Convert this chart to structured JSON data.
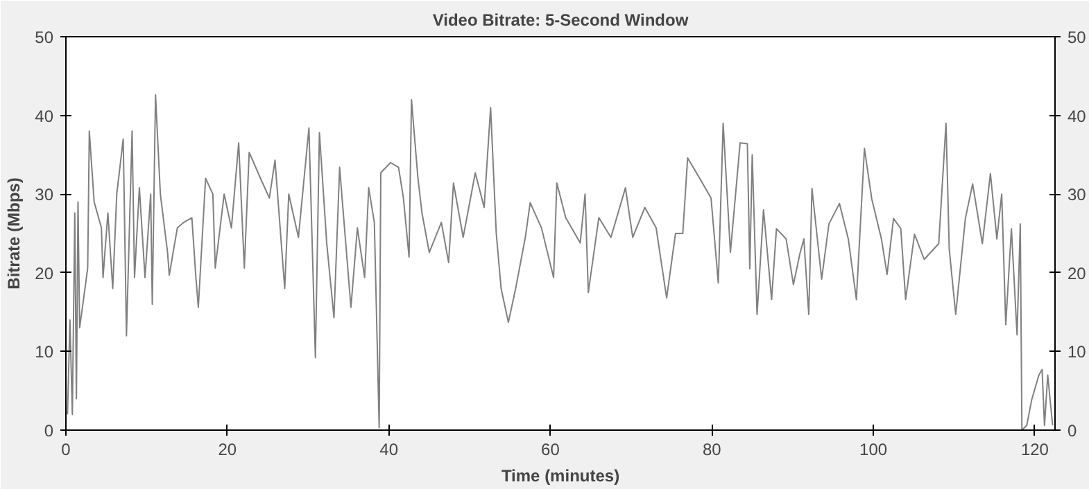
{
  "chart_data": {
    "type": "line",
    "title": "Video Bitrate: 5-Second Window",
    "xlabel": "Time (minutes)",
    "ylabel": "Bitrate (Mbps)",
    "xlim": [
      0,
      122.5
    ],
    "xticks": [
      0,
      20,
      40,
      60,
      80,
      100,
      120
    ],
    "ylim": [
      0,
      50
    ],
    "yticks": [
      0,
      10,
      20,
      30,
      40,
      50
    ],
    "y2lim": [
      0,
      50
    ],
    "y2ticks": [
      0,
      10,
      20,
      30,
      40,
      50
    ],
    "grid": false,
    "x": [
      0.2,
      0.5,
      0.8,
      1.1,
      1.3,
      1.5,
      1.7,
      2.3,
      2.7,
      2.9,
      3.5,
      4.4,
      4.6,
      5.2,
      5.8,
      6.3,
      7.1,
      7.5,
      8.2,
      8.5,
      9.1,
      9.8,
      10.5,
      10.7,
      11.1,
      11.7,
      12.6,
      12.8,
      13.8,
      14.6,
      15.6,
      16.1,
      16.4,
      17.3,
      18.2,
      18.5,
      19.6,
      20.5,
      21.4,
      22.1,
      22.7,
      24.1,
      25.2,
      25.9,
      27.1,
      27.6,
      28.8,
      30.1,
      30.9,
      31.4,
      32.3,
      33.2,
      33.9,
      35.3,
      36.1,
      37,
      37.5,
      38.2,
      38.8,
      39,
      40.2,
      41.2,
      41.8,
      42.5,
      42.8,
      43.6,
      44.1,
      45,
      46.5,
      47.4,
      48,
      49.2,
      50.7,
      51.8,
      52.6,
      53.3,
      53.9,
      54.8,
      55.7,
      56.9,
      57.5,
      58.9,
      60.4,
      60.8,
      61.9,
      63.7,
      64.3,
      64.7,
      66,
      67.5,
      69.3,
      70.2,
      71.7,
      73.1,
      74.4,
      75.5,
      76.4,
      77,
      78.5,
      79.9,
      80.8,
      81.4,
      82.3,
      83.5,
      84.4,
      84.7,
      85,
      85.6,
      86.4,
      87.4,
      88,
      89.2,
      90.1,
      90.9,
      91.4,
      92,
      92.4,
      93.6,
      94.5,
      95.8,
      96.9,
      97.9,
      98.9,
      99.8,
      101,
      101.7,
      102.5,
      103.4,
      104,
      105.1,
      106.3,
      108.1,
      109,
      109.4,
      110.2,
      111.4,
      112.3,
      113.5,
      114.5,
      115.3,
      115.9,
      116.4,
      117.1,
      117.8,
      118.2,
      118.4,
      119,
      119.6,
      120.5,
      120.9,
      121.2,
      121.6,
      122.2
    ],
    "series": [
      {
        "color": "#808080",
        "values": [
          2,
          14,
          2,
          27.6,
          4,
          29,
          13,
          17.5,
          20.6,
          38,
          29,
          25.7,
          19.4,
          27.6,
          18,
          30,
          37,
          12,
          38,
          19.4,
          30.8,
          19.4,
          30,
          16,
          42.6,
          30,
          22.5,
          19.7,
          25.7,
          26.4,
          27,
          19.4,
          15.6,
          32,
          30,
          20.6,
          30,
          25.7,
          36.5,
          20.6,
          35.3,
          32,
          29.5,
          34.3,
          18,
          30,
          24.5,
          38.4,
          9.2,
          37.8,
          23.8,
          14.3,
          33.4,
          15.6,
          25.7,
          19.4,
          30.8,
          26.4,
          0.3,
          32.7,
          34,
          33.4,
          29.5,
          22,
          42,
          32,
          27.6,
          22.6,
          26.4,
          21.3,
          31.4,
          24.5,
          32.7,
          28.3,
          41,
          25,
          18,
          13.7,
          18,
          24.5,
          28.9,
          25.7,
          19.4,
          31.4,
          27,
          23.8,
          30,
          17.5,
          27,
          24.5,
          30.8,
          24.5,
          28.3,
          25.7,
          16.8,
          25,
          25,
          34.6,
          32,
          29.5,
          18.7,
          39,
          22.6,
          36.5,
          36.4,
          20.5,
          35,
          14.7,
          28,
          16.6,
          25.6,
          24.3,
          18.5,
          22.4,
          24.3,
          14.7,
          30.7,
          19.2,
          26.2,
          28.8,
          24.3,
          16.6,
          35.8,
          29.4,
          24.3,
          19.8,
          26.9,
          25.6,
          16.6,
          24.9,
          21.7,
          23.7,
          39,
          23,
          14.7,
          26.9,
          31.3,
          23.7,
          32.6,
          24.3,
          30,
          13.4,
          25.6,
          12.1,
          26.2,
          0,
          0.6,
          3.8,
          7,
          7.7,
          0.6,
          7,
          0.6
        ]
      }
    ]
  }
}
